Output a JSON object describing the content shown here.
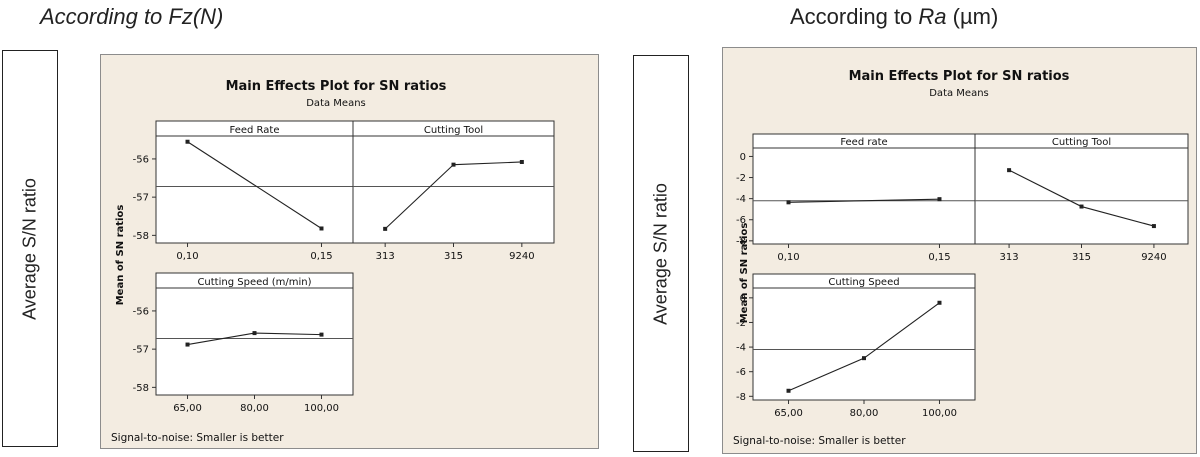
{
  "headings": {
    "left": "According to Fz(N)",
    "right_prefix": "According to ",
    "right_italic": "Ra",
    "right_suffix": " (µm)"
  },
  "ylabel_box": "Average S/N ratio",
  "colors": {
    "panel_bg": "#f3ece1",
    "line": "#222222"
  },
  "chart_data": [
    {
      "type": "line",
      "title": "Main Effects Plot for SN ratios",
      "subtitle": "Data Means",
      "ylabel": "Mean of SN ratios",
      "footer": "Signal-to-noise: Smaller is better",
      "grand_mean": -56.72,
      "ylim": [
        -58.2,
        -55.4
      ],
      "yticks": [
        -56,
        -57,
        -58
      ],
      "ytick_labels": [
        "-56",
        "-57",
        "-58"
      ],
      "panels": [
        {
          "title": "Feed Rate",
          "categories": [
            "0,10",
            "0,15"
          ],
          "values": [
            -55.55,
            -57.82
          ]
        },
        {
          "title": "Cutting Tool",
          "categories": [
            "313",
            "315",
            "9240"
          ],
          "values": [
            -57.83,
            -56.15,
            -56.08
          ]
        },
        {
          "title": "Cutting Speed (m/min)",
          "categories": [
            "65,00",
            "80,00",
            "100,00"
          ],
          "values": [
            -56.88,
            -56.58,
            -56.62
          ]
        }
      ]
    },
    {
      "type": "line",
      "title": "Main Effects Plot for SN ratios",
      "subtitle": "Data Means",
      "ylabel": "Mean of SN ratios",
      "footer": "Signal-to-noise: Smaller is better",
      "grand_mean": -4.2,
      "ylim": [
        -8.3,
        0.8
      ],
      "yticks": [
        0,
        -2,
        -4,
        -6,
        -8
      ],
      "ytick_labels": [
        "0",
        "-2",
        "-4",
        "-6",
        "-8"
      ],
      "panels": [
        {
          "title": "Feed rate",
          "categories": [
            "0,10",
            "0,15"
          ],
          "values": [
            -4.35,
            -4.05
          ]
        },
        {
          "title": "Cutting Tool",
          "categories": [
            "313",
            "315",
            "9240"
          ],
          "values": [
            -1.3,
            -4.75,
            -6.6
          ]
        },
        {
          "title": "Cutting Speed",
          "categories": [
            "65,00",
            "80,00",
            "100,00"
          ],
          "values": [
            -7.55,
            -4.9,
            -0.4
          ]
        }
      ]
    }
  ]
}
